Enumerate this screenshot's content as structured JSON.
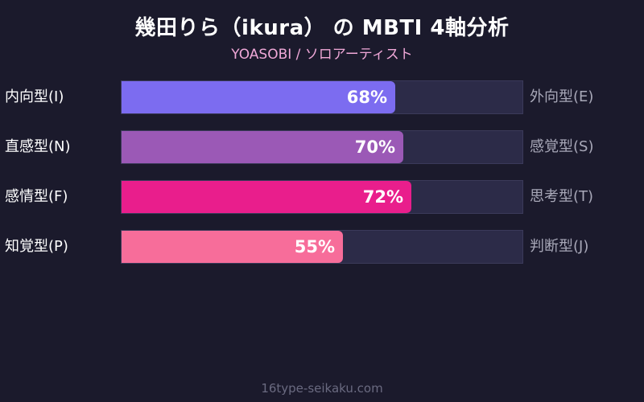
{
  "chart_data": {
    "type": "bar",
    "orientation": "horizontal",
    "title": "幾田りら（ikura） の MBTI 4軸分析",
    "subtitle": "YOASOBI / ソロアーティスト",
    "xlim": [
      0,
      100
    ],
    "value_suffix": "%",
    "rows": [
      {
        "left": "内向型(I)",
        "right": "外向型(E)",
        "value": 68,
        "color": "#7c6cf0"
      },
      {
        "left": "直感型(N)",
        "right": "感覚型(S)",
        "value": 70,
        "color": "#9b59b6"
      },
      {
        "left": "感情型(F)",
        "right": "思考型(T)",
        "value": 72,
        "color": "#e91e8c"
      },
      {
        "left": "知覚型(P)",
        "right": "判断型(J)",
        "value": 55,
        "color": "#f76d9a"
      }
    ],
    "pct_labels": [
      "68%",
      "70%",
      "72%",
      "55%"
    ]
  },
  "footer": "16type-seikaku.com"
}
